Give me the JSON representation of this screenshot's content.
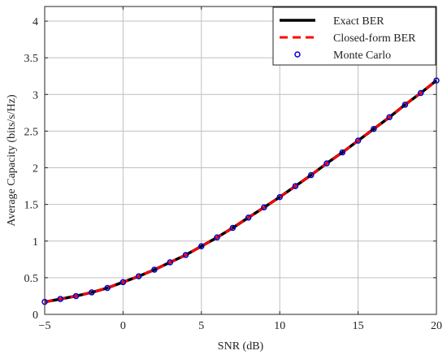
{
  "chart_data": {
    "type": "line",
    "title": "",
    "xlabel": "SNR (dB)",
    "ylabel": "Average Capacity (bits/s/Hz)",
    "xlim": [
      -5,
      20
    ],
    "ylim": [
      0,
      4.2
    ],
    "xticks": [
      -5,
      0,
      5,
      10,
      15,
      20
    ],
    "yticks": [
      0,
      0.5,
      1,
      1.5,
      2,
      2.5,
      3,
      3.5,
      4
    ],
    "grid": true,
    "legend_position": "top-right",
    "x": [
      -5,
      -4,
      -3,
      -2,
      -1,
      0,
      1,
      2,
      3,
      4,
      5,
      6,
      7,
      8,
      9,
      10,
      11,
      12,
      13,
      14,
      15,
      16,
      17,
      18,
      19,
      20
    ],
    "series": [
      {
        "name": "Exact BER",
        "style": "solid",
        "color": "#000000",
        "values": [
          0.17,
          0.21,
          0.25,
          0.3,
          0.36,
          0.44,
          0.52,
          0.61,
          0.71,
          0.81,
          0.93,
          1.05,
          1.18,
          1.32,
          1.46,
          1.6,
          1.75,
          1.9,
          2.06,
          2.21,
          2.37,
          2.53,
          2.69,
          2.86,
          3.02,
          3.19
        ]
      },
      {
        "name": "Closed-form BER",
        "style": "dashed",
        "color": "#ff0000",
        "values": [
          0.17,
          0.21,
          0.25,
          0.3,
          0.36,
          0.44,
          0.52,
          0.61,
          0.71,
          0.81,
          0.93,
          1.05,
          1.18,
          1.32,
          1.46,
          1.6,
          1.75,
          1.9,
          2.06,
          2.21,
          2.37,
          2.53,
          2.69,
          2.86,
          3.02,
          3.19
        ]
      },
      {
        "name": "Monte Carlo",
        "style": "markers",
        "color": "#0000cc",
        "values": [
          0.17,
          0.21,
          0.25,
          0.3,
          0.36,
          0.44,
          0.52,
          0.61,
          0.71,
          0.81,
          0.93,
          1.05,
          1.18,
          1.32,
          1.46,
          1.6,
          1.75,
          1.9,
          2.06,
          2.21,
          2.37,
          2.53,
          2.69,
          2.86,
          3.02,
          3.19
        ]
      }
    ]
  }
}
